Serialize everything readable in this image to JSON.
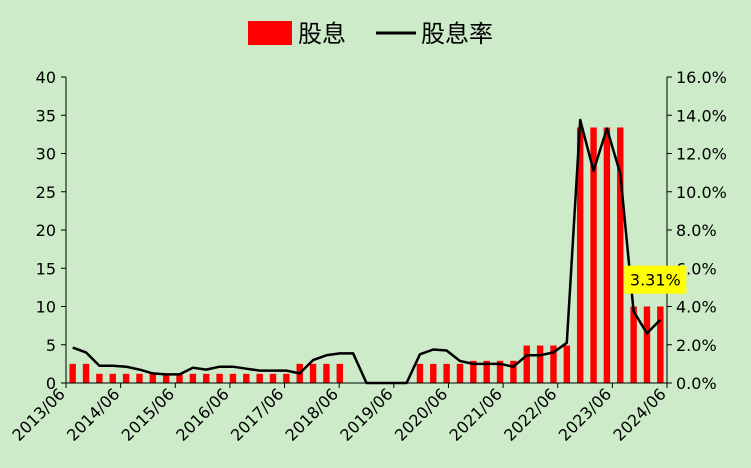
{
  "chart_data": {
    "type": "bar",
    "title": "",
    "xlabel": "",
    "ylabel": "",
    "legend_position": "top",
    "grid": false,
    "ylim": [
      0,
      40
    ],
    "y2lim": [
      0,
      0.16
    ],
    "yticks": [
      "0",
      "5",
      "10",
      "15",
      "20",
      "25",
      "30",
      "35",
      "40"
    ],
    "y2ticks": [
      "0.0%",
      "2.0%",
      "4.0%",
      "6.0%",
      "8.0%",
      "10.0%",
      "12.0%",
      "14.0%",
      "16.0%"
    ],
    "xtick_labels": [
      "2013/06",
      "2014/06",
      "2015/06",
      "2016/06",
      "2017/06",
      "2018/06",
      "2019/06",
      "2020/06",
      "2021/06",
      "2022/06",
      "2023/06",
      "2024/06"
    ],
    "n_periods": 45,
    "series": [
      {
        "name": "股息",
        "type": "bar",
        "axis": "left",
        "color": "#ff0000",
        "values": [
          2.5,
          2.5,
          1.2,
          1.2,
          1.2,
          1.2,
          1.2,
          1.2,
          1.2,
          1.2,
          1.2,
          1.2,
          1.2,
          1.2,
          1.2,
          1.2,
          1.2,
          2.5,
          2.5,
          2.5,
          2.5,
          0,
          0,
          0,
          0,
          0,
          2.5,
          2.5,
          2.5,
          2.5,
          2.9,
          2.9,
          2.9,
          2.9,
          4.9,
          4.9,
          4.9,
          4.9,
          33.4,
          33.4,
          33.4,
          33.4,
          10,
          10,
          10
        ]
      },
      {
        "name": "股息率",
        "type": "line",
        "axis": "right",
        "color": "#000000",
        "values": [
          0.0185,
          0.016,
          0.009,
          0.009,
          0.0085,
          0.007,
          0.005,
          0.0045,
          0.0045,
          0.008,
          0.007,
          0.0085,
          0.0085,
          0.0075,
          0.0065,
          0.0065,
          0.0065,
          0.005,
          0.012,
          0.0145,
          0.0155,
          0.0155,
          0,
          0,
          0,
          0,
          0.015,
          0.0175,
          0.017,
          0.0115,
          0.01,
          0.01,
          0.01,
          0.0085,
          0.0145,
          0.0145,
          0.016,
          0.021,
          0.1375,
          0.111,
          0.133,
          0.1095,
          0.0375,
          0.026,
          0.0331
        ]
      }
    ],
    "annotations": [
      {
        "text": "3.31%",
        "series": "股息率",
        "index": 44,
        "background": "#ffff00"
      }
    ]
  }
}
